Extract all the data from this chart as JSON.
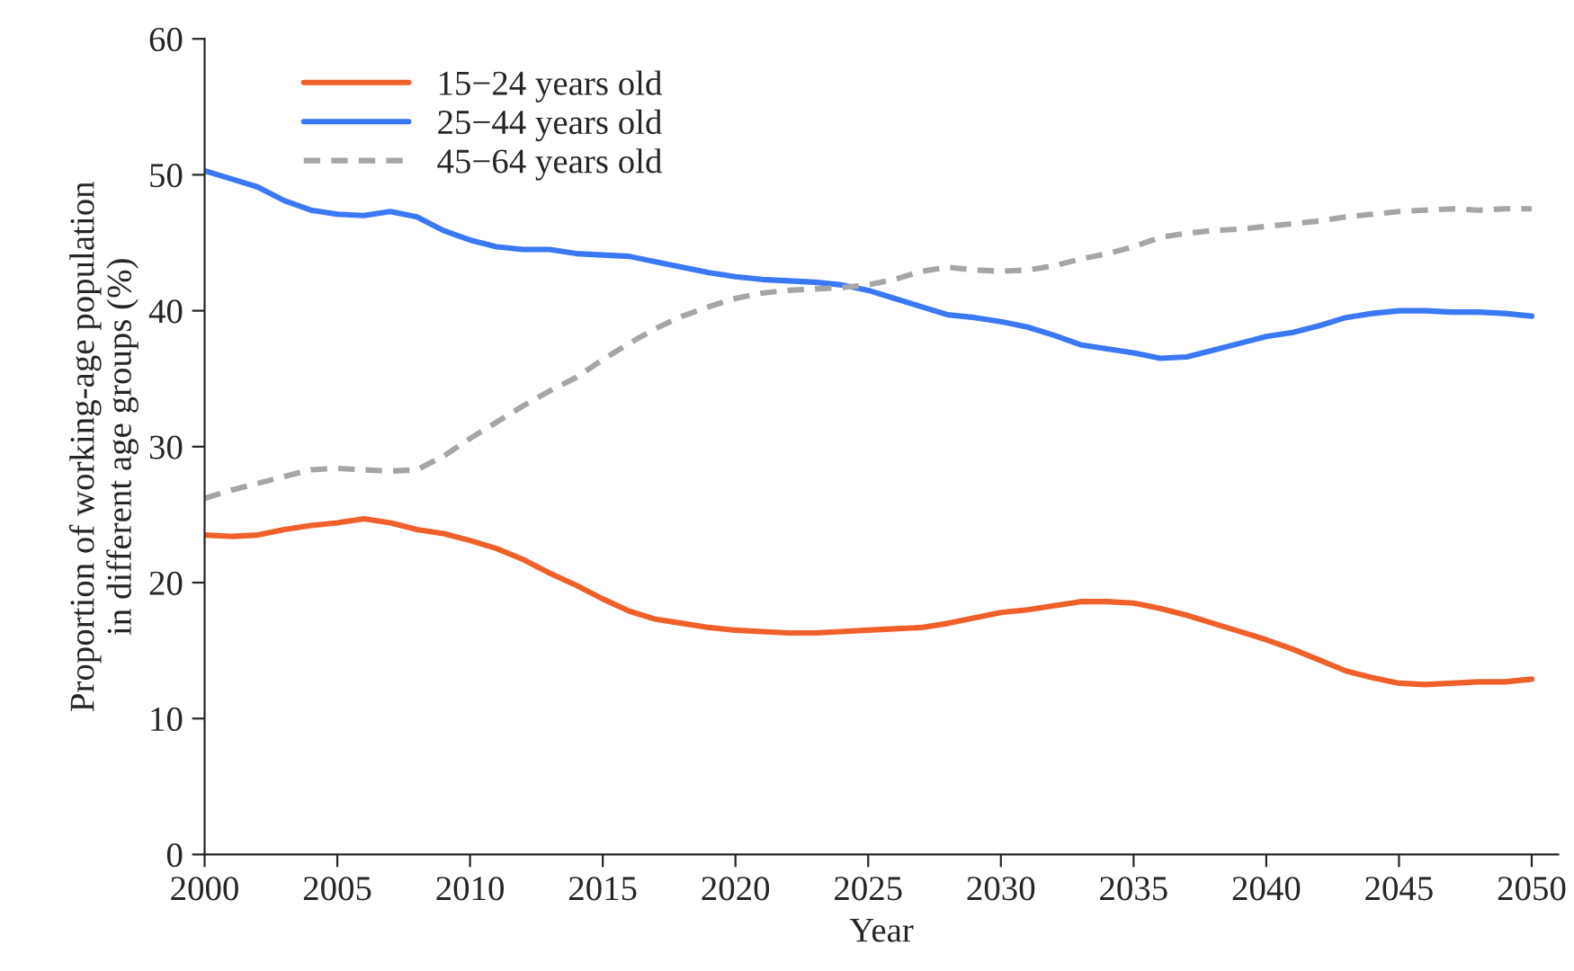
{
  "chart_data": {
    "type": "line",
    "xlabel": "Year",
    "ylabel": "Proportion of working-age population\nin different age groups (%)",
    "x": [
      2000,
      2001,
      2002,
      2003,
      2004,
      2005,
      2006,
      2007,
      2008,
      2009,
      2010,
      2011,
      2012,
      2013,
      2014,
      2015,
      2016,
      2017,
      2018,
      2019,
      2020,
      2021,
      2022,
      2023,
      2024,
      2025,
      2026,
      2027,
      2028,
      2029,
      2030,
      2031,
      2032,
      2033,
      2034,
      2035,
      2036,
      2037,
      2038,
      2039,
      2040,
      2041,
      2042,
      2043,
      2044,
      2045,
      2046,
      2047,
      2048,
      2049,
      2050
    ],
    "series": [
      {
        "name": "15−24 years old",
        "color": "#f0602a",
        "line_style": "solid",
        "values": [
          23.5,
          23.4,
          23.5,
          23.9,
          24.2,
          24.4,
          24.7,
          24.4,
          23.9,
          23.6,
          23.1,
          22.5,
          21.7,
          20.7,
          19.8,
          18.8,
          17.9,
          17.3,
          17.0,
          16.7,
          16.5,
          16.4,
          16.3,
          16.3,
          16.4,
          16.5,
          16.6,
          16.7,
          17.0,
          17.4,
          17.8,
          18.0,
          18.3,
          18.6,
          18.6,
          18.5,
          18.1,
          17.6,
          17.0,
          16.4,
          15.8,
          15.1,
          14.3,
          13.5,
          13.0,
          12.6,
          12.5,
          12.6,
          12.7,
          12.7,
          12.9
        ]
      },
      {
        "name": "25−44 years old",
        "color": "#3b78f5",
        "line_style": "solid",
        "values": [
          50.3,
          49.7,
          49.1,
          48.1,
          47.4,
          47.1,
          47.0,
          47.3,
          46.9,
          45.9,
          45.2,
          44.7,
          44.5,
          44.5,
          44.2,
          44.1,
          44.0,
          43.6,
          43.2,
          42.8,
          42.5,
          42.3,
          42.2,
          42.1,
          41.9,
          41.5,
          40.9,
          40.3,
          39.7,
          39.5,
          39.2,
          38.8,
          38.2,
          37.5,
          37.2,
          36.9,
          36.5,
          36.6,
          37.1,
          37.6,
          38.1,
          38.4,
          38.9,
          39.5,
          39.8,
          40.0,
          40.0,
          39.9,
          39.9,
          39.8,
          39.6
        ]
      },
      {
        "name": "45−64 years old",
        "color": "#a5a5a5",
        "line_style": "dashed",
        "values": [
          26.2,
          26.8,
          27.3,
          27.8,
          28.3,
          28.4,
          28.3,
          28.2,
          28.3,
          29.3,
          30.6,
          31.8,
          33.0,
          34.1,
          35.1,
          36.4,
          37.6,
          38.7,
          39.6,
          40.3,
          40.9,
          41.3,
          41.5,
          41.6,
          41.7,
          41.9,
          42.3,
          42.9,
          43.2,
          43.0,
          42.9,
          43.0,
          43.3,
          43.8,
          44.2,
          44.7,
          45.4,
          45.7,
          45.9,
          46.0,
          46.2,
          46.4,
          46.6,
          46.9,
          47.1,
          47.3,
          47.4,
          47.5,
          47.4,
          47.5,
          47.5
        ]
      }
    ],
    "xlim": [
      2000,
      2051
    ],
    "xticks": [
      2000,
      2005,
      2010,
      2015,
      2020,
      2025,
      2030,
      2035,
      2040,
      2045,
      2050
    ],
    "ylim": [
      0,
      60
    ],
    "yticks": [
      0,
      10,
      20,
      30,
      40,
      50,
      60
    ],
    "grid": false,
    "legend": "top left",
    "marker": "none"
  }
}
